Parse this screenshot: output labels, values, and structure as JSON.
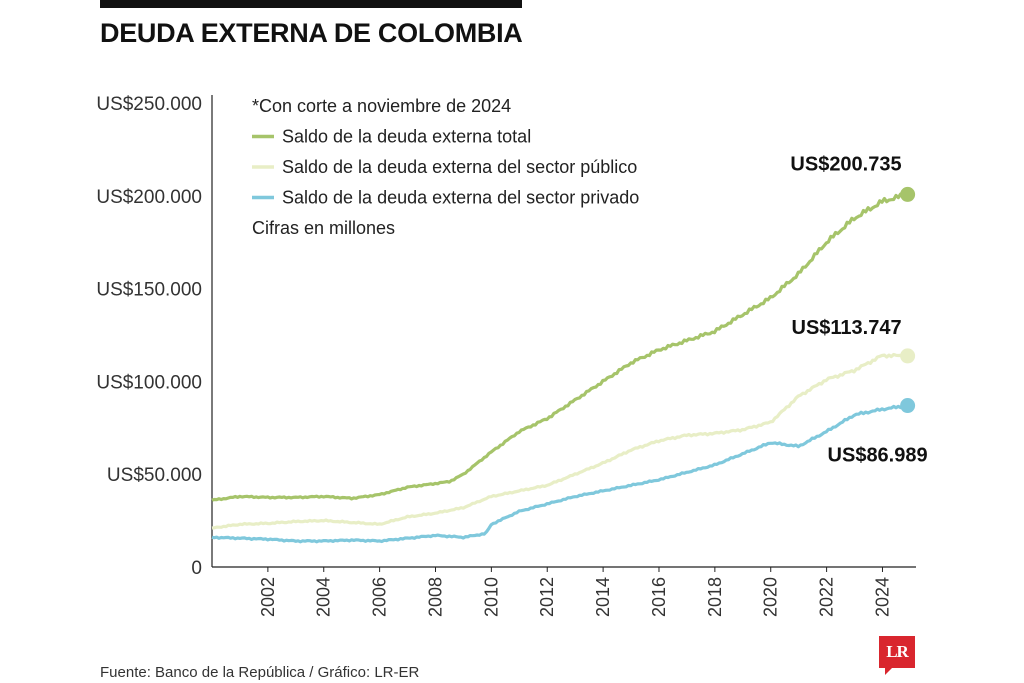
{
  "title": "DEUDA EXTERNA DE COLOMBIA",
  "source": "Fuente: Banco de la República / Gráfico: LR-ER",
  "logo_text": "LR",
  "chart_data": {
    "type": "line",
    "title": "DEUDA EXTERNA DE COLOMBIA",
    "xlim": [
      2000.0,
      2025.2
    ],
    "ylim": [
      0,
      250000
    ],
    "y_ticks": [
      0,
      50000,
      100000,
      150000,
      200000,
      250000
    ],
    "y_tick_labels": [
      "0",
      "US$50.000",
      "US$100.000",
      "US$150.000",
      "US$200.000",
      "US$250.000"
    ],
    "x_ticks": [
      2002,
      2004,
      2006,
      2008,
      2010,
      2012,
      2014,
      2016,
      2018,
      2020,
      2022,
      2024
    ],
    "x_tick_labels": [
      "2002",
      "2004",
      "2006",
      "2008",
      "2010",
      "2012",
      "2014",
      "2016",
      "2018",
      "2020",
      "2022",
      "2024"
    ],
    "legend_position": "top-left",
    "notes": [
      "*Con corte a noviembre de 2024",
      "Cifras en millones"
    ],
    "series": [
      {
        "name": "Saldo de la deuda externa total",
        "color": "#a6c46a",
        "end_label": "US$200.735",
        "end_value": 200735,
        "x": [
          2000.0,
          2001,
          2002,
          2003,
          2004,
          2005,
          2006,
          2007,
          2008,
          2008.5,
          2009,
          2010,
          2011,
          2012,
          2013,
          2014,
          2015,
          2016,
          2017,
          2018,
          2019,
          2020,
          2021,
          2022,
          2023,
          2024,
          2024.9
        ],
        "y": [
          36000,
          38000,
          37500,
          37500,
          38000,
          37000,
          39000,
          43000,
          45000,
          46000,
          50000,
          62000,
          73000,
          80000,
          90000,
          100000,
          110000,
          117000,
          122000,
          127000,
          136000,
          145000,
          158000,
          175000,
          188000,
          197000,
          200735
        ]
      },
      {
        "name": "Saldo de la deuda externa del sector público",
        "color": "#e8eec6",
        "end_label": "US$113.747",
        "end_value": 113747,
        "x": [
          2000.0,
          2001,
          2002,
          2003,
          2004,
          2005,
          2006,
          2007,
          2008,
          2009,
          2010,
          2011,
          2012,
          2013,
          2014,
          2015,
          2016,
          2017,
          2018,
          2019,
          2020,
          2021,
          2022,
          2023,
          2024,
          2024.9
        ],
        "y": [
          21000,
          23000,
          23500,
          24500,
          25000,
          24000,
          23000,
          27000,
          29000,
          32000,
          38000,
          41000,
          44000,
          50000,
          56000,
          63000,
          68000,
          71000,
          72000,
          74000,
          78000,
          92000,
          101000,
          106000,
          114000,
          113747
        ]
      },
      {
        "name": "Saldo de la deuda externa del sector privado",
        "color": "#7fc8dc",
        "end_label": "US$86.989",
        "end_value": 86989,
        "x": [
          2000.0,
          2001,
          2002,
          2003,
          2004,
          2005,
          2006,
          2007,
          2008,
          2009,
          2009.8,
          2010,
          2011,
          2012,
          2013,
          2014,
          2015,
          2016,
          2017,
          2018,
          2019,
          2020,
          2021,
          2022,
          2023,
          2024,
          2024.9
        ],
        "y": [
          16000,
          15500,
          15000,
          14000,
          14000,
          14500,
          14000,
          15500,
          17000,
          16000,
          18000,
          23000,
          30000,
          34000,
          38000,
          41000,
          44000,
          47000,
          51000,
          55000,
          61000,
          67000,
          65000,
          73000,
          82000,
          85000,
          86989
        ]
      }
    ]
  }
}
